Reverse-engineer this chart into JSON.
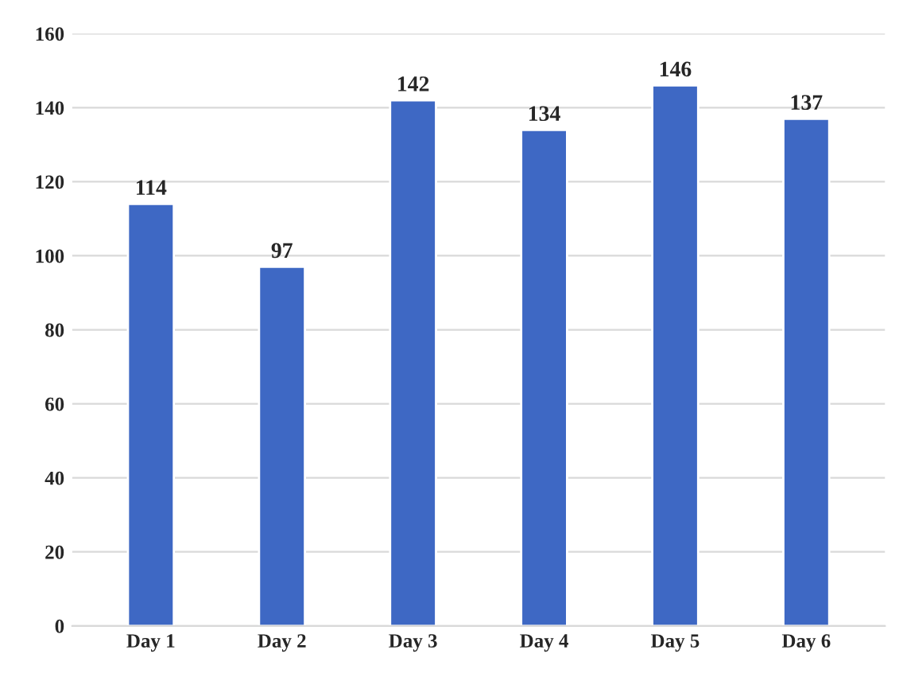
{
  "chart_data": {
    "type": "bar",
    "categories": [
      "Day 1",
      "Day 2",
      "Day 3",
      "Day 4",
      "Day 5",
      "Day 6"
    ],
    "values": [
      114,
      97,
      142,
      134,
      146,
      137
    ],
    "color": "#3e68c4",
    "ylim": [
      0,
      160
    ],
    "yticks": [
      0,
      20,
      40,
      60,
      80,
      100,
      120,
      140,
      160
    ],
    "grid": "y",
    "data_labels": true
  }
}
